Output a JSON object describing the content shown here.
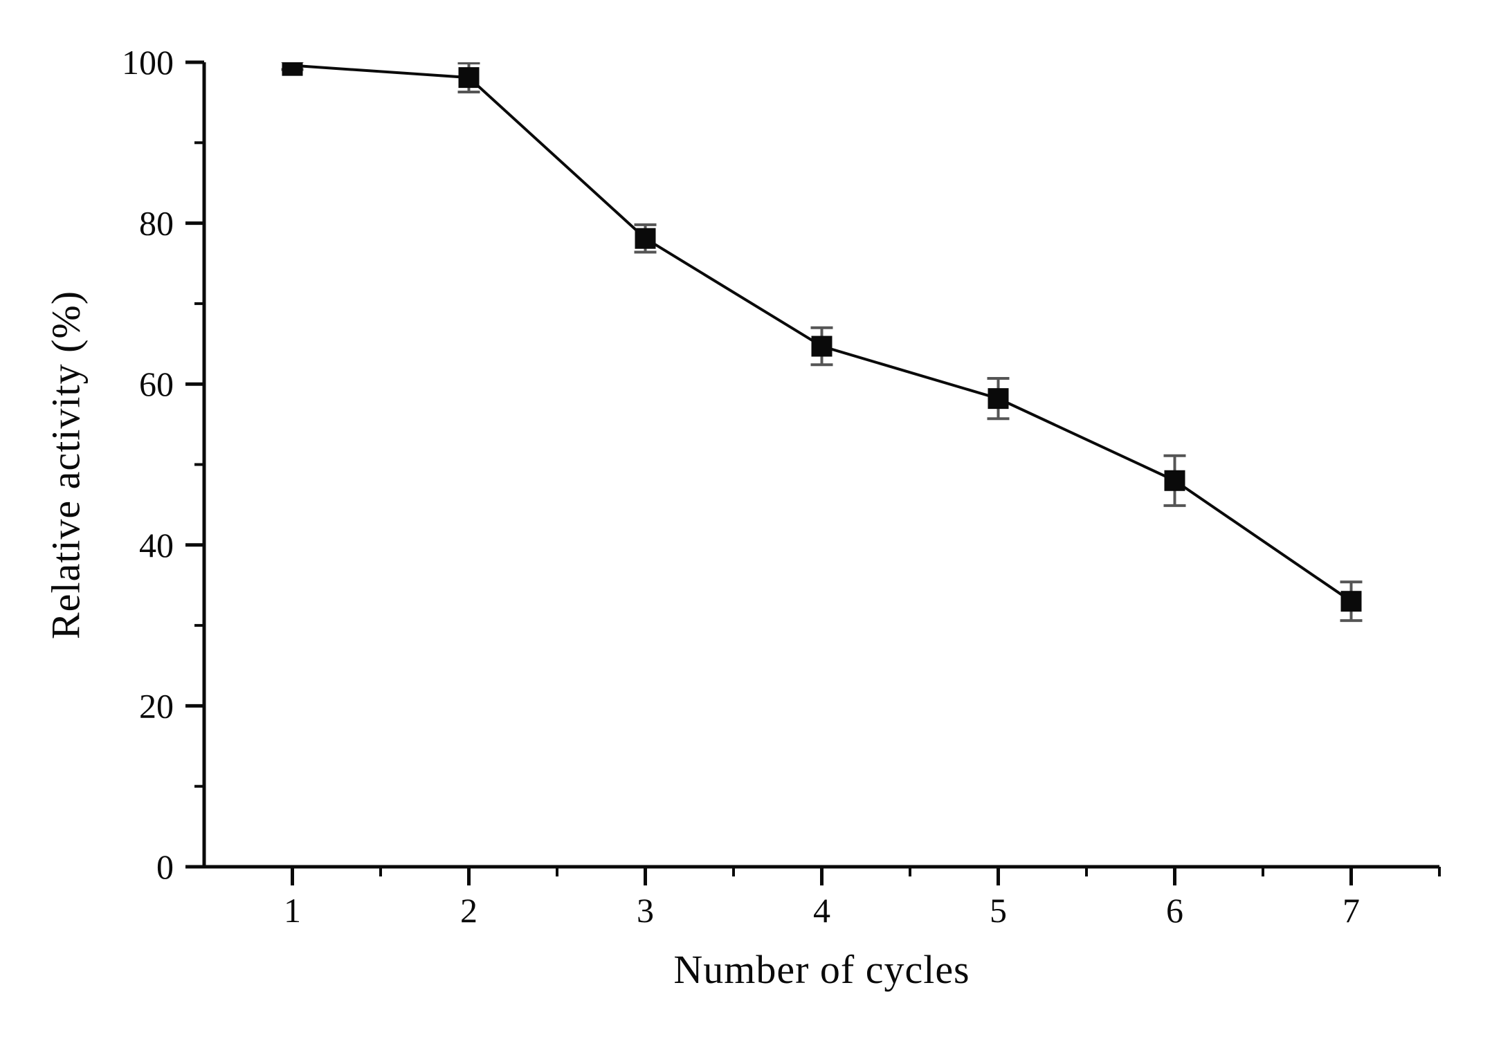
{
  "figure": {
    "background": "#ffffff",
    "axis_color": "#0a0a0a",
    "text_color": "#0a0a0a"
  },
  "chart_data": {
    "type": "line",
    "title": "",
    "xlabel": "Number of cycles",
    "ylabel": "Relative activity (%)",
    "x": [
      1,
      2,
      3,
      4,
      5,
      6,
      7
    ],
    "series": [
      {
        "name": "relative-activity",
        "values": [
          99.6,
          98.1,
          78.1,
          64.7,
          58.2,
          48.0,
          33.0
        ],
        "errors": [
          0.5,
          1.8,
          1.7,
          2.3,
          2.5,
          3.1,
          2.4
        ],
        "marker": "filled-square",
        "color": "#0a0a0a",
        "error_color": "#555555"
      }
    ],
    "xlim": [
      0.5,
      7.5
    ],
    "ylim": [
      0,
      100
    ],
    "x_major_ticks": [
      1,
      2,
      3,
      4,
      5,
      6,
      7
    ],
    "x_minor_ticks": [
      1.5,
      2.5,
      3.5,
      4.5,
      5.5,
      6.5,
      7.5
    ],
    "y_major_ticks": [
      0,
      20,
      40,
      60,
      80,
      100
    ],
    "y_minor_ticks": [
      10,
      30,
      50,
      70,
      90
    ],
    "grid": false,
    "legend": "none",
    "frame": "left-bottom-only"
  }
}
